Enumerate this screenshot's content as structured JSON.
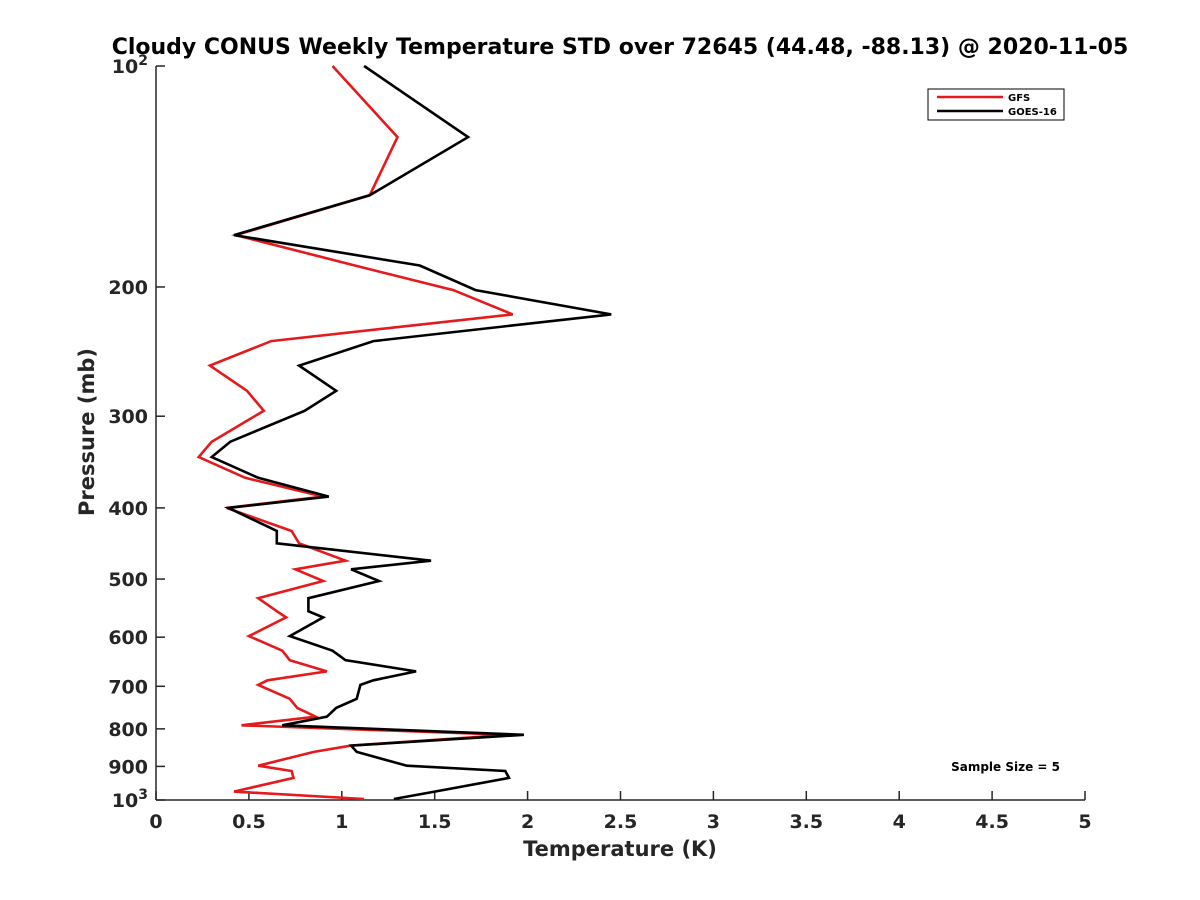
{
  "chart_data": {
    "type": "line",
    "title": "Cloudy CONUS Weekly Temperature STD over 72645 (44.48, -88.13) @ 2020-11-05",
    "xlabel": "Temperature (K)",
    "ylabel": "Pressure (mb)",
    "xlim": [
      0,
      5
    ],
    "ylim": [
      100,
      1000
    ],
    "y_scale": "log",
    "y_reversed": true,
    "x_ticks": [
      0,
      0.5,
      1,
      1.5,
      2,
      2.5,
      3,
      3.5,
      4,
      4.5,
      5
    ],
    "x_tick_labels": [
      "0",
      "0.5",
      "1",
      "1.5",
      "2",
      "2.5",
      "3",
      "3.5",
      "4",
      "4.5",
      "5"
    ],
    "y_ticks": [
      100,
      200,
      300,
      400,
      500,
      600,
      700,
      800,
      900,
      1000
    ],
    "y_tick_labels": [
      {
        "base": "10",
        "exp": "2"
      },
      {
        "base": "200",
        "exp": ""
      },
      {
        "base": "300",
        "exp": ""
      },
      {
        "base": "400",
        "exp": ""
      },
      {
        "base": "500",
        "exp": ""
      },
      {
        "base": "600",
        "exp": ""
      },
      {
        "base": "700",
        "exp": ""
      },
      {
        "base": "800",
        "exp": ""
      },
      {
        "base": "900",
        "exp": ""
      },
      {
        "base": "10",
        "exp": "3"
      }
    ],
    "grid": false,
    "legend_position": "top-right",
    "annotation": "Sample Size = 5",
    "series": [
      {
        "name": "GFS",
        "color": "#e41a1c",
        "points": [
          [
            0.95,
            100
          ],
          [
            1.3,
            125
          ],
          [
            1.15,
            150
          ],
          [
            0.43,
            170
          ],
          [
            1.07,
            187
          ],
          [
            1.6,
            202
          ],
          [
            1.92,
            218
          ],
          [
            0.62,
            237
          ],
          [
            0.29,
            256
          ],
          [
            0.49,
            277
          ],
          [
            0.58,
            295
          ],
          [
            0.3,
            325
          ],
          [
            0.23,
            341
          ],
          [
            0.48,
            364
          ],
          [
            0.9,
            386
          ],
          [
            0.38,
            400
          ],
          [
            0.73,
            430
          ],
          [
            0.77,
            447
          ],
          [
            1.02,
            472
          ],
          [
            0.75,
            485
          ],
          [
            0.9,
            503
          ],
          [
            0.55,
            531
          ],
          [
            0.65,
            553
          ],
          [
            0.7,
            564
          ],
          [
            0.5,
            598
          ],
          [
            0.68,
            626
          ],
          [
            0.72,
            645
          ],
          [
            0.92,
            668
          ],
          [
            0.6,
            687
          ],
          [
            0.55,
            697
          ],
          [
            0.72,
            728
          ],
          [
            0.76,
            749
          ],
          [
            0.86,
            770
          ],
          [
            0.46,
            791
          ],
          [
            1.9,
            815
          ],
          [
            1.05,
            843
          ],
          [
            0.85,
            860
          ],
          [
            0.55,
            898
          ],
          [
            0.73,
            913
          ],
          [
            0.74,
            933
          ],
          [
            0.42,
            974
          ],
          [
            1.12,
            997
          ]
        ]
      },
      {
        "name": "GOES-16",
        "color": "#000000",
        "points": [
          [
            1.12,
            100
          ],
          [
            1.68,
            125
          ],
          [
            1.15,
            150
          ],
          [
            0.42,
            170
          ],
          [
            1.42,
            187
          ],
          [
            1.72,
            202
          ],
          [
            2.45,
            218
          ],
          [
            1.17,
            237
          ],
          [
            0.77,
            256
          ],
          [
            0.97,
            277
          ],
          [
            0.8,
            295
          ],
          [
            0.4,
            325
          ],
          [
            0.3,
            341
          ],
          [
            0.55,
            364
          ],
          [
            0.93,
            386
          ],
          [
            0.39,
            400
          ],
          [
            0.65,
            430
          ],
          [
            0.65,
            447
          ],
          [
            1.48,
            472
          ],
          [
            1.05,
            485
          ],
          [
            1.2,
            503
          ],
          [
            0.82,
            531
          ],
          [
            0.82,
            553
          ],
          [
            0.9,
            564
          ],
          [
            0.72,
            598
          ],
          [
            0.95,
            626
          ],
          [
            1.02,
            645
          ],
          [
            1.4,
            668
          ],
          [
            1.17,
            687
          ],
          [
            1.1,
            697
          ],
          [
            1.08,
            728
          ],
          [
            0.97,
            749
          ],
          [
            0.92,
            770
          ],
          [
            0.68,
            791
          ],
          [
            1.98,
            815
          ],
          [
            1.05,
            843
          ],
          [
            1.08,
            860
          ],
          [
            1.35,
            898
          ],
          [
            1.88,
            913
          ],
          [
            1.9,
            933
          ],
          [
            1.5,
            974
          ],
          [
            1.28,
            997
          ]
        ]
      }
    ]
  }
}
